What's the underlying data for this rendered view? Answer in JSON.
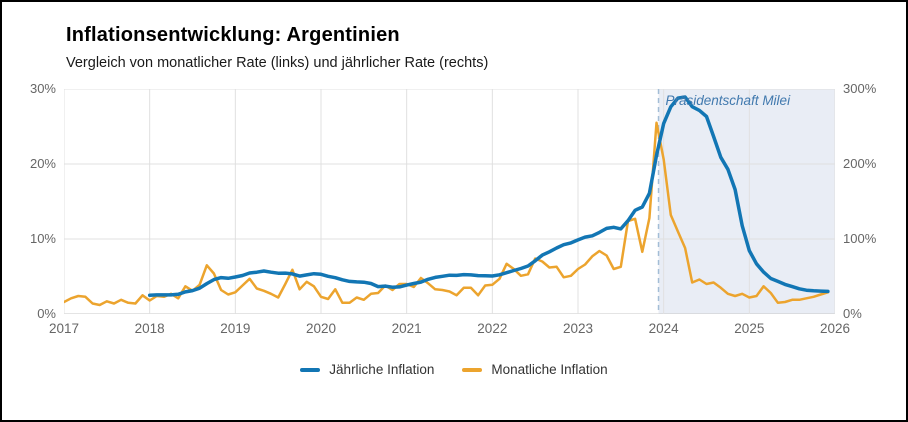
{
  "page": {
    "title": "Inflationsentwicklung: Argentinien",
    "subtitle": "Vergleich von monatlicher Rate (links) und jährlicher Rate (rechts)"
  },
  "chart_data": {
    "type": "line",
    "title": "Inflationsentwicklung: Argentinien",
    "subtitle": "Vergleich von monatlicher Rate (links) und jährlicher Rate (rechts)",
    "legend_position": "bottom-center",
    "grid": true,
    "x_axis": {
      "min": 2017,
      "max": 2026,
      "ticks": [
        {
          "value": 2017,
          "label": "2017"
        },
        {
          "value": 2018,
          "label": "2018"
        },
        {
          "value": 2019,
          "label": "2019"
        },
        {
          "value": 2020,
          "label": "2020"
        },
        {
          "value": 2021,
          "label": "2021"
        },
        {
          "value": 2022,
          "label": "2022"
        },
        {
          "value": 2023,
          "label": "2023"
        },
        {
          "value": 2024,
          "label": "2024"
        },
        {
          "value": 2025,
          "label": "2025"
        },
        {
          "value": 2026,
          "label": "2026"
        }
      ]
    },
    "y_axis_left": {
      "max": 30,
      "ticks": [
        {
          "value": 0,
          "label": "0%"
        },
        {
          "value": 10,
          "label": "10%"
        },
        {
          "value": 20,
          "label": "20%"
        },
        {
          "value": 30,
          "label": "30%"
        }
      ]
    },
    "y_axis_right": {
      "max": 300,
      "ticks": [
        {
          "value": 0,
          "label": "0%"
        },
        {
          "value": 100,
          "label": "100%"
        },
        {
          "value": 200,
          "label": "200%"
        },
        {
          "value": 300,
          "label": "300%"
        }
      ]
    },
    "annotation": {
      "label": "Präsidentschaft Milei",
      "x_year": 2023.94
    },
    "colors": {
      "annual": "#1276b4",
      "monthly": "#eca42e",
      "grid": "#e0e0e0",
      "axis": "#c9c9c9",
      "shade": "#e9edf5",
      "dashed_line": "#a3bdd6",
      "annotation_text": "#4179ae"
    },
    "series": [
      {
        "id": "annual-inflation",
        "name": "Jährliche Inflation",
        "axis": "right",
        "color": "#1276b4",
        "start_year": 2018,
        "points_per_year": 12,
        "values": [
          25.0,
          25.4,
          25.4,
          25.5,
          26.3,
          29.5,
          31.2,
          34.4,
          40.5,
          45.9,
          48.5,
          47.6,
          49.3,
          51.3,
          54.7,
          55.8,
          57.3,
          55.8,
          54.4,
          54.5,
          53.5,
          50.5,
          52.1,
          53.8,
          52.9,
          50.3,
          48.4,
          45.6,
          43.4,
          42.8,
          42.4,
          40.7,
          36.6,
          37.2,
          35.8,
          36.1,
          38.5,
          40.7,
          42.6,
          46.3,
          48.8,
          50.2,
          51.8,
          51.4,
          52.5,
          52.1,
          51.2,
          50.9,
          50.7,
          52.3,
          55.1,
          58.0,
          60.7,
          64.0,
          71.0,
          78.5,
          83.0,
          88.0,
          92.4,
          94.8,
          98.8,
          102.5,
          104.3,
          108.8,
          114.2,
          115.6,
          113.4,
          124.4,
          138.3,
          142.7,
          160.9,
          211.4,
          254.2,
          276.2,
          287.9,
          289.4,
          276.4,
          271.5,
          263.4,
          236.7,
          209.0,
          193.0,
          166.0,
          117.8,
          84.5,
          66.9,
          55.9,
          47.3,
          43.5,
          39.4,
          36.6,
          33.6,
          31.8,
          31.0,
          30.5,
          30.1
        ]
      },
      {
        "id": "monthly-inflation",
        "name": "Monatliche Inflation",
        "axis": "left",
        "color": "#eca42e",
        "start_year": 2017,
        "points_per_year": 12,
        "values": [
          1.6,
          2.1,
          2.4,
          2.3,
          1.4,
          1.2,
          1.7,
          1.4,
          1.9,
          1.5,
          1.4,
          2.5,
          1.8,
          2.4,
          2.3,
          2.7,
          2.1,
          3.7,
          3.1,
          3.9,
          6.5,
          5.4,
          3.2,
          2.6,
          2.9,
          3.8,
          4.7,
          3.4,
          3.1,
          2.7,
          2.2,
          4.0,
          5.9,
          3.3,
          4.3,
          3.7,
          2.3,
          2.0,
          3.3,
          1.5,
          1.5,
          2.2,
          1.9,
          2.7,
          2.8,
          3.8,
          3.2,
          4.0,
          4.0,
          3.6,
          4.8,
          4.1,
          3.3,
          3.2,
          3.0,
          2.5,
          3.5,
          3.5,
          2.5,
          3.8,
          3.9,
          4.7,
          6.7,
          6.0,
          5.1,
          5.3,
          7.4,
          7.0,
          6.2,
          6.3,
          4.9,
          5.1,
          6.0,
          6.6,
          7.7,
          8.4,
          7.8,
          6.0,
          6.3,
          12.4,
          12.7,
          8.3,
          12.8,
          25.5,
          20.6,
          13.2,
          11.0,
          8.8,
          4.2,
          4.6,
          4.0,
          4.2,
          3.5,
          2.7,
          2.4,
          2.7,
          2.2,
          2.4,
          3.7,
          2.8,
          1.5,
          1.6,
          1.9,
          1.9,
          2.1,
          2.3,
          2.6,
          2.9
        ]
      }
    ]
  }
}
